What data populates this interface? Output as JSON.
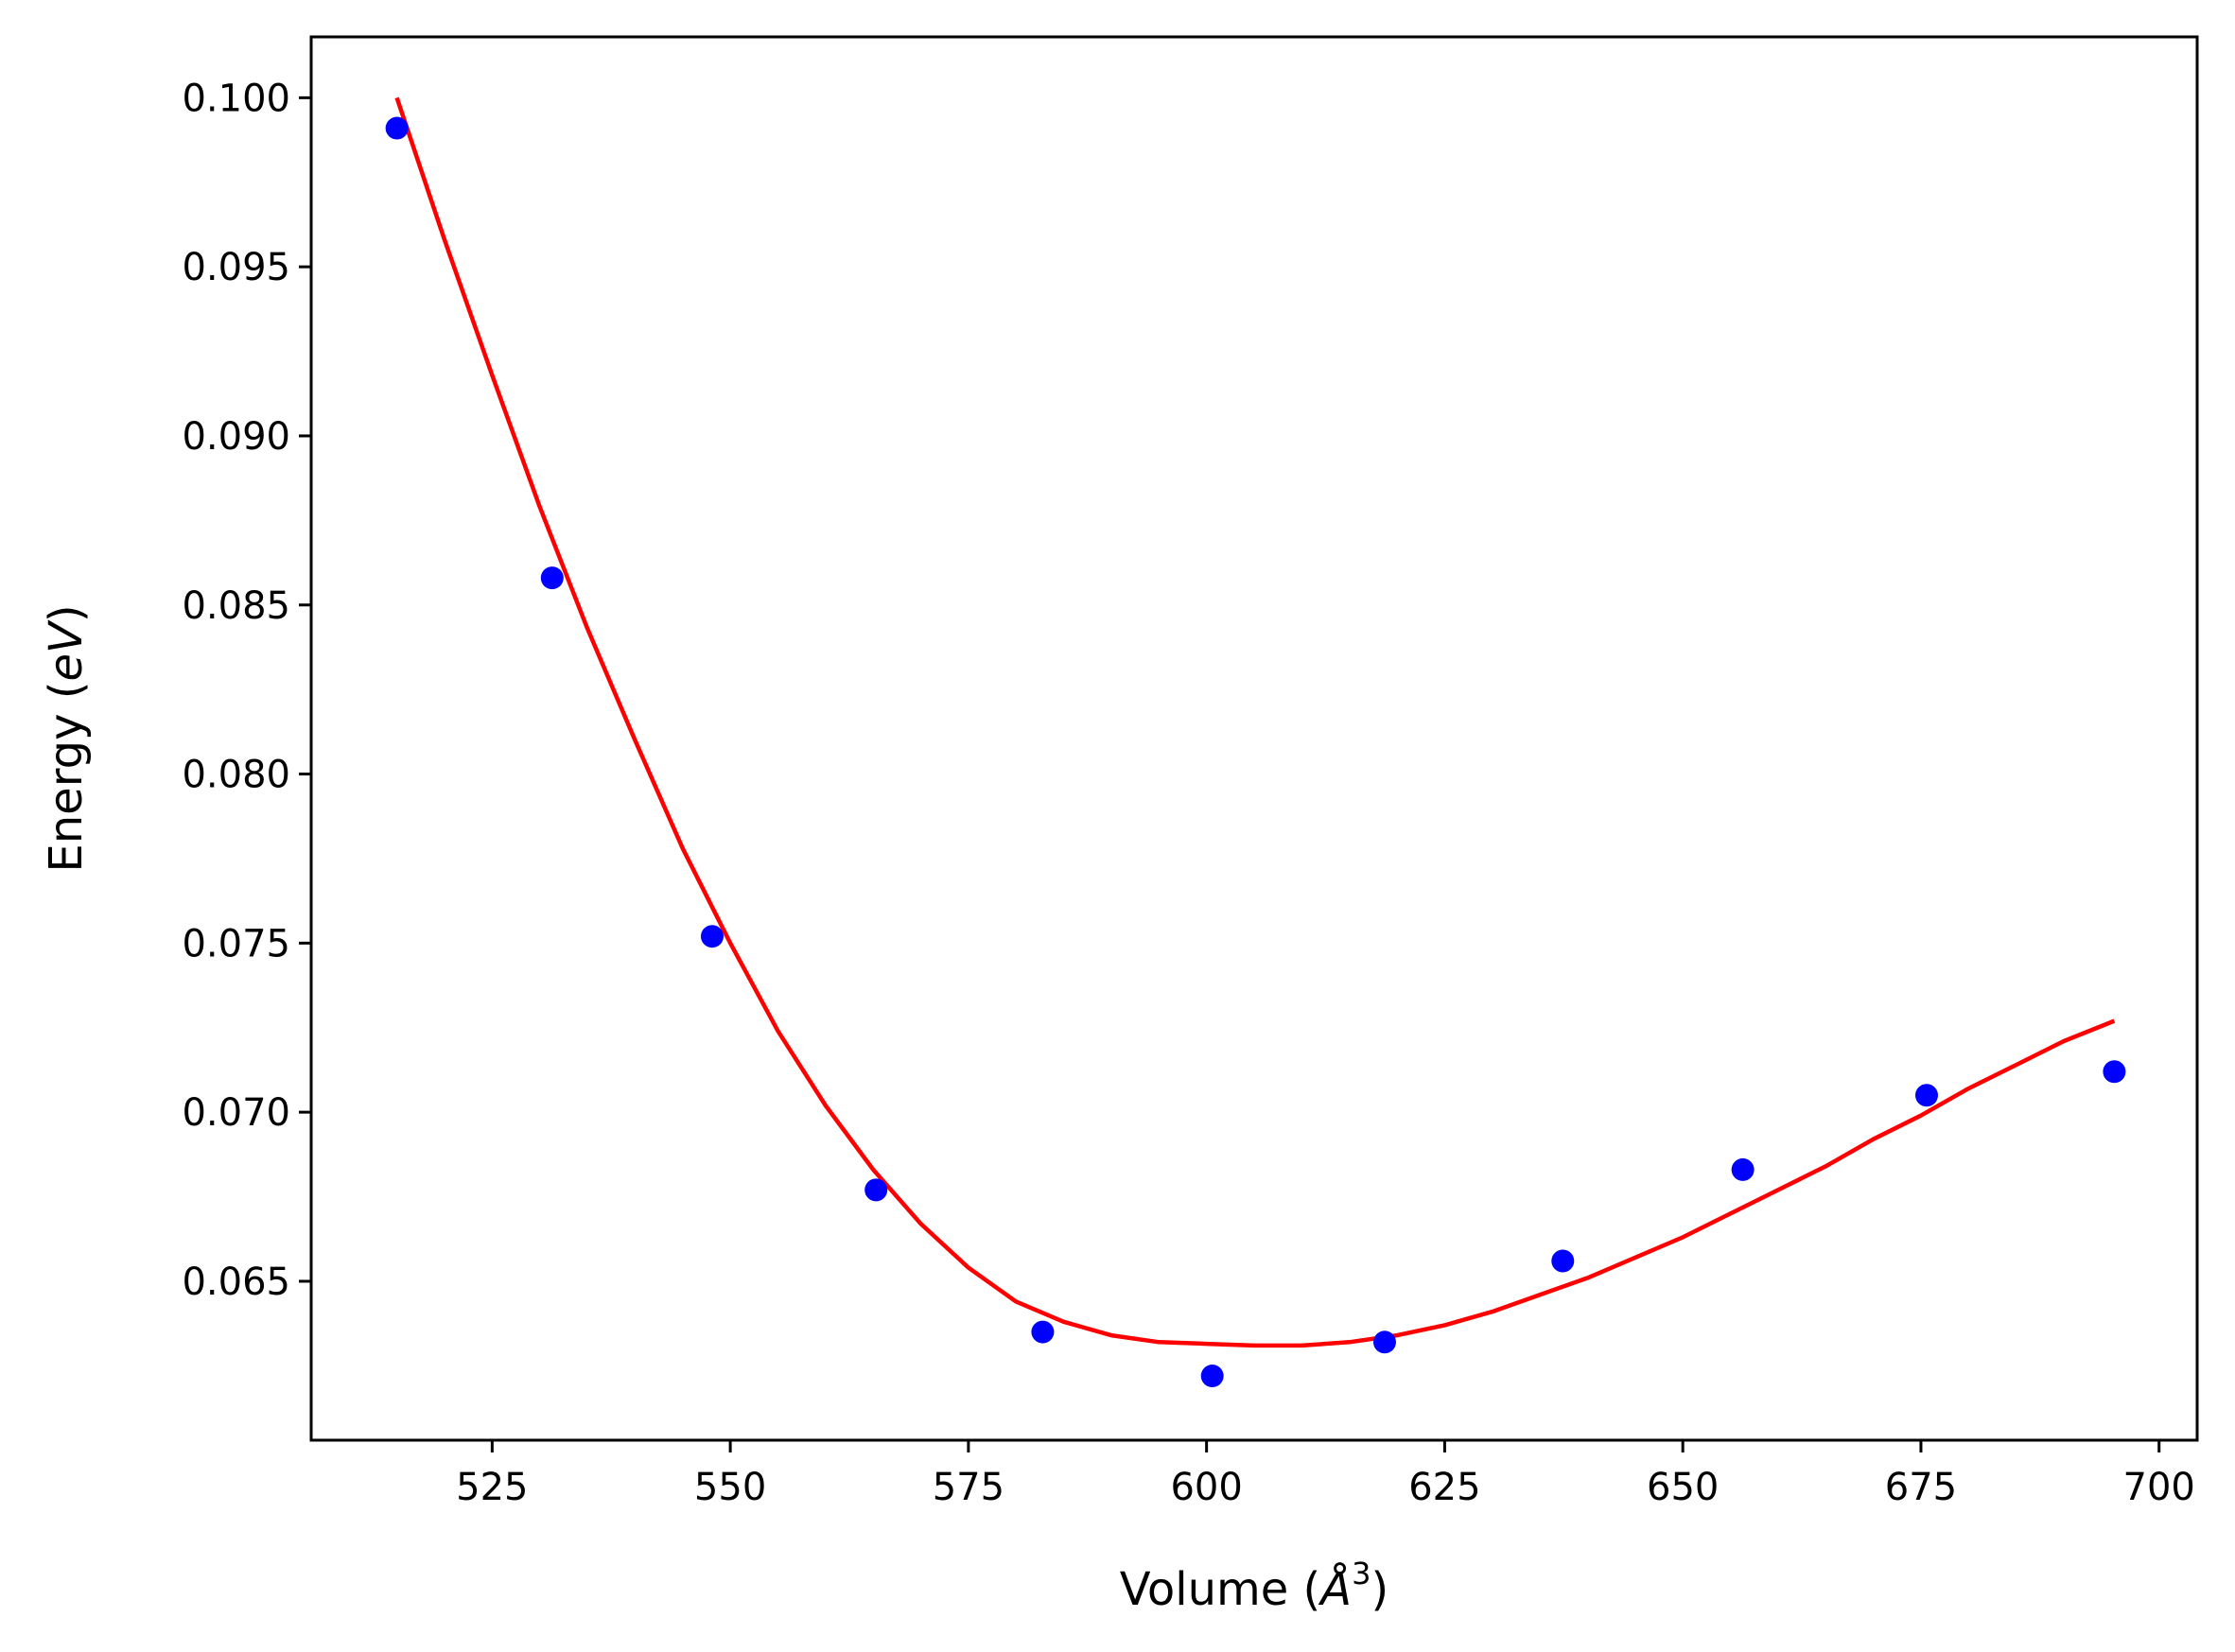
{
  "chart_data": {
    "type": "scatter",
    "title": "",
    "xlabel": {
      "prefix": "Volume (",
      "symbol": "Å",
      "sup": "3",
      "suffix": ")"
    },
    "ylabel": {
      "prefix": "Energy (",
      "italic": "eV",
      "suffix": ")"
    },
    "xlim": [
      506,
      704
    ],
    "ylim": [
      0.0603,
      0.1018
    ],
    "xticks": [
      525,
      550,
      575,
      600,
      625,
      650,
      675,
      700
    ],
    "xtick_labels": [
      "525",
      "550",
      "575",
      "600",
      "625",
      "650",
      "675",
      "700"
    ],
    "yticks": [
      0.065,
      0.07,
      0.075,
      0.08,
      0.085,
      0.09,
      0.095,
      0.1
    ],
    "ytick_labels": [
      "0.065",
      "0.070",
      "0.075",
      "0.080",
      "0.085",
      "0.090",
      "0.095",
      "0.100"
    ],
    "grid": false,
    "series": [
      {
        "kind": "points",
        "color": "#0000ff",
        "x": [
          515.0,
          531.3,
          548.1,
          565.3,
          582.8,
          600.6,
          618.7,
          637.4,
          656.3,
          675.6,
          695.3
        ],
        "y": [
          0.0991,
          0.0858,
          0.0752,
          0.0677,
          0.0635,
          0.0622,
          0.0632,
          0.0656,
          0.0683,
          0.0705,
          0.0712
        ]
      },
      {
        "kind": "line",
        "color": "#ff0000",
        "x": [
          515,
          520,
          525,
          530,
          535,
          540,
          545,
          550,
          555,
          560,
          565,
          570,
          575,
          580,
          585,
          590,
          595,
          600,
          605,
          610,
          615,
          620,
          625,
          630,
          635,
          640,
          645,
          650,
          655,
          660,
          665,
          670,
          675,
          680,
          685,
          690,
          695.3
        ],
        "y": [
          0.1,
          0.0958,
          0.0918,
          0.0879,
          0.0843,
          0.081,
          0.0778,
          0.075,
          0.0724,
          0.0702,
          0.0683,
          0.0667,
          0.0654,
          0.0644,
          0.0638,
          0.0634,
          0.0632,
          0.06315,
          0.0631,
          0.0631,
          0.0632,
          0.0634,
          0.0637,
          0.0641,
          0.0646,
          0.0651,
          0.0657,
          0.0663,
          0.067,
          0.0677,
          0.0684,
          0.0692,
          0.0699,
          0.0707,
          0.0714,
          0.0721,
          0.0727
        ]
      }
    ]
  }
}
